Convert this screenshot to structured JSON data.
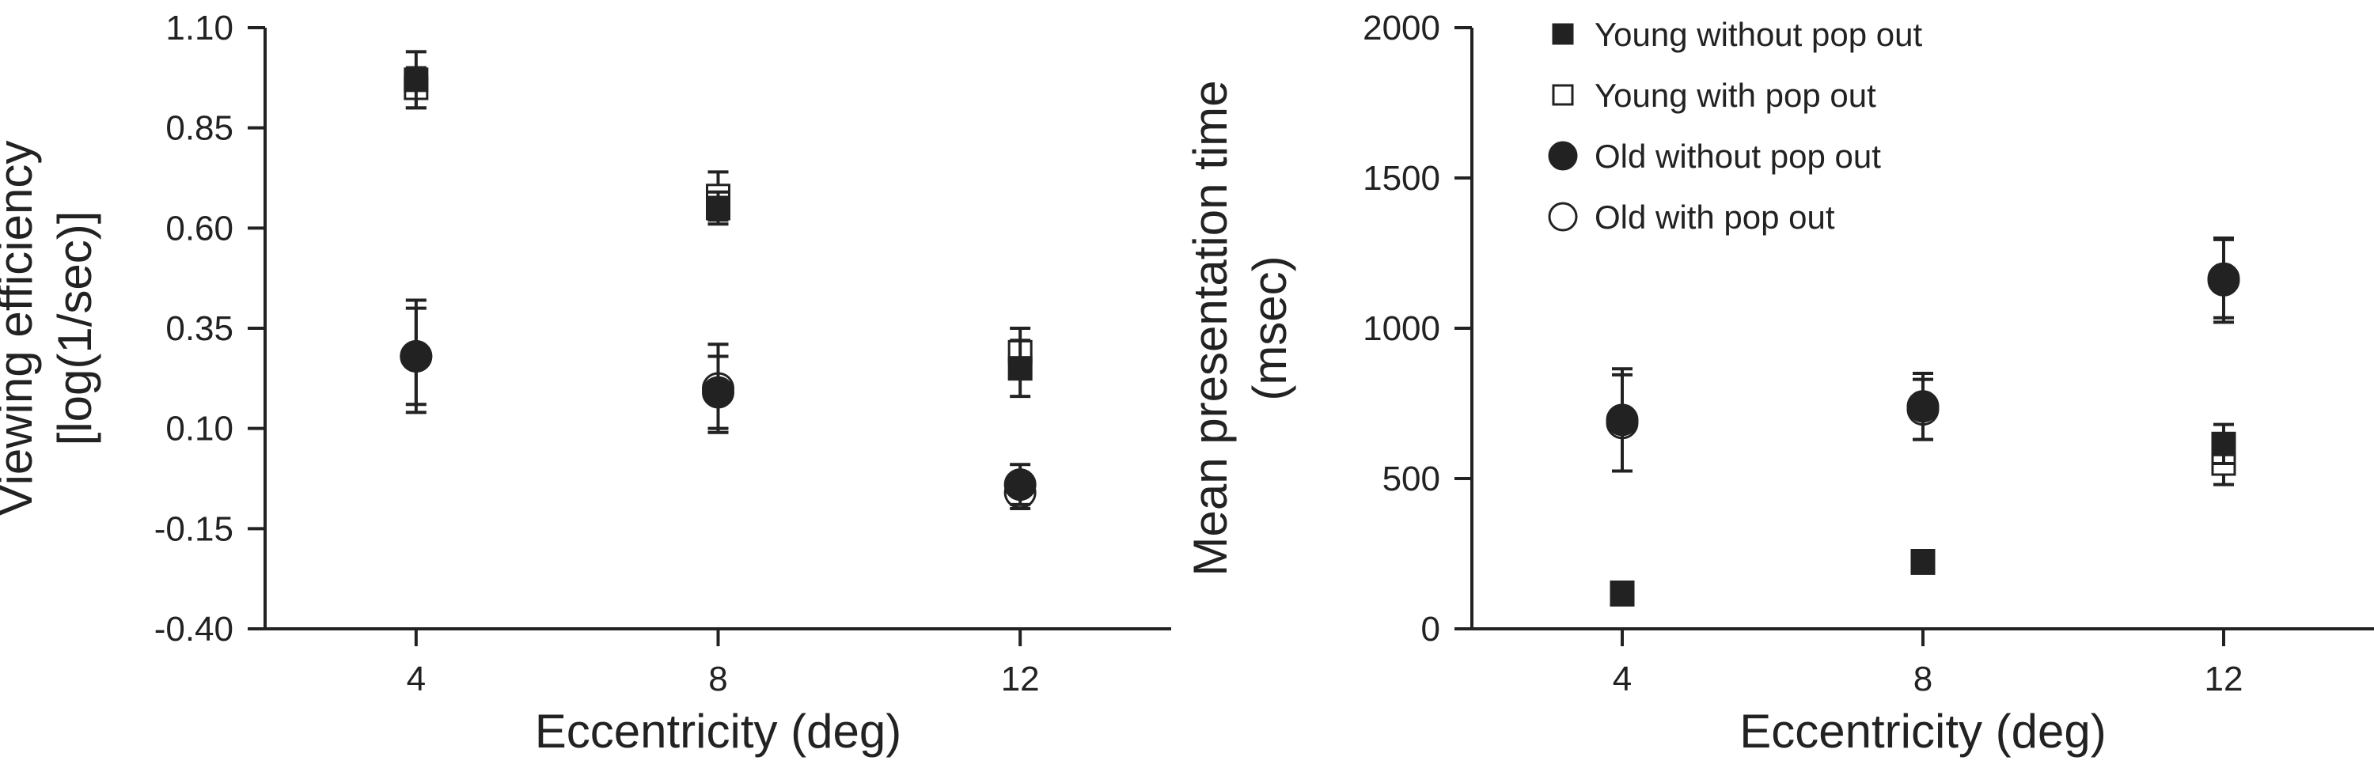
{
  "legend": [
    {
      "label": "Young without pop out",
      "marker": "square",
      "fill": "filled"
    },
    {
      "label": "Young with pop out",
      "marker": "square",
      "fill": "open"
    },
    {
      "label": "Old without pop out",
      "marker": "circle",
      "fill": "filled"
    },
    {
      "label": "Old with pop out",
      "marker": "circle",
      "fill": "open"
    }
  ],
  "colors": {
    "ink": "#222222",
    "background": "#ffffff"
  },
  "chart_data": [
    {
      "type": "scatter",
      "xlabel": "Eccentricity (deg)",
      "ylabel_lines": [
        "Viewing efficiency",
        "[log(1/sec)]"
      ],
      "x_ticks": [
        "4",
        "8",
        "12"
      ],
      "y_ticks": [
        "1.10",
        "0.85",
        "0.60",
        "0.35",
        "0.10",
        "-0.15",
        "-0.40"
      ],
      "xlim": [
        2,
        14
      ],
      "ylim": [
        -0.4,
        1.1
      ],
      "grid": false,
      "error_bars": true,
      "series": [
        {
          "name": "Young without pop out",
          "marker": "square",
          "fill": "filled",
          "x": [
            4,
            8,
            12
          ],
          "y": [
            0.97,
            0.65,
            0.25
          ],
          "err": [
            0.07,
            0.04,
            0.07
          ]
        },
        {
          "name": "Young with pop out",
          "marker": "square",
          "fill": "open",
          "x": [
            4,
            8,
            12
          ],
          "y": [
            0.95,
            0.68,
            0.29
          ],
          "err": [
            0.05,
            0.06,
            0.06
          ]
        },
        {
          "name": "Old without pop out",
          "marker": "circle",
          "fill": "filled",
          "x": [
            4,
            8,
            12
          ],
          "y": [
            0.28,
            0.19,
            -0.04
          ],
          "err": [
            0.12,
            0.09,
            0.05
          ]
        },
        {
          "name": "Old with pop out",
          "marker": "circle",
          "fill": "open",
          "x": [
            4,
            8,
            12
          ],
          "y": [
            0.28,
            0.2,
            -0.06
          ],
          "err": [
            0.14,
            0.11,
            0.04
          ]
        }
      ]
    },
    {
      "type": "scatter",
      "xlabel": "Eccentricity (deg)",
      "ylabel_lines": [
        "Mean presentation time",
        "(msec)"
      ],
      "x_ticks": [
        "4",
        "8",
        "12"
      ],
      "y_ticks": [
        "2000",
        "1500",
        "1000",
        "500",
        "0"
      ],
      "xlim": [
        2,
        14
      ],
      "ylim": [
        0,
        2000
      ],
      "grid": false,
      "error_bars": true,
      "legend_position": "top-left",
      "series": [
        {
          "name": "Young without pop out",
          "marker": "square",
          "fill": "filled",
          "x": [
            4,
            8,
            12
          ],
          "y": [
            115,
            225,
            615
          ],
          "err": [
            15,
            20,
            65
          ]
        },
        {
          "name": "Young with pop out",
          "marker": "square",
          "fill": "open",
          "x": [
            4,
            8,
            12
          ],
          "y": [
            120,
            220,
            550
          ],
          "err": [
            15,
            20,
            70
          ]
        },
        {
          "name": "Old without pop out",
          "marker": "circle",
          "fill": "filled",
          "x": [
            4,
            8,
            12
          ],
          "y": [
            695,
            740,
            1165
          ],
          "err": [
            170,
            110,
            130
          ]
        },
        {
          "name": "Old with pop out",
          "marker": "circle",
          "fill": "open",
          "x": [
            4,
            8,
            12
          ],
          "y": [
            685,
            730,
            1160
          ],
          "err": [
            160,
            100,
            140
          ]
        }
      ]
    }
  ]
}
